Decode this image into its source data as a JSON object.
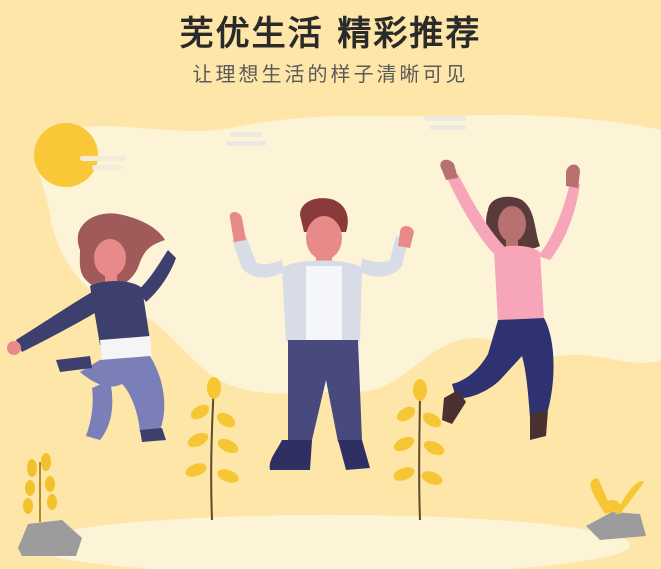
{
  "header": {
    "title": "芜优生活 精彩推荐",
    "subtitle": "让理想生活的样子清晰可见"
  },
  "colors": {
    "background": "#fde6a8",
    "blob": "#fdf3d6",
    "sun": "#f9c737",
    "accent_yellow": "#f6c634"
  }
}
